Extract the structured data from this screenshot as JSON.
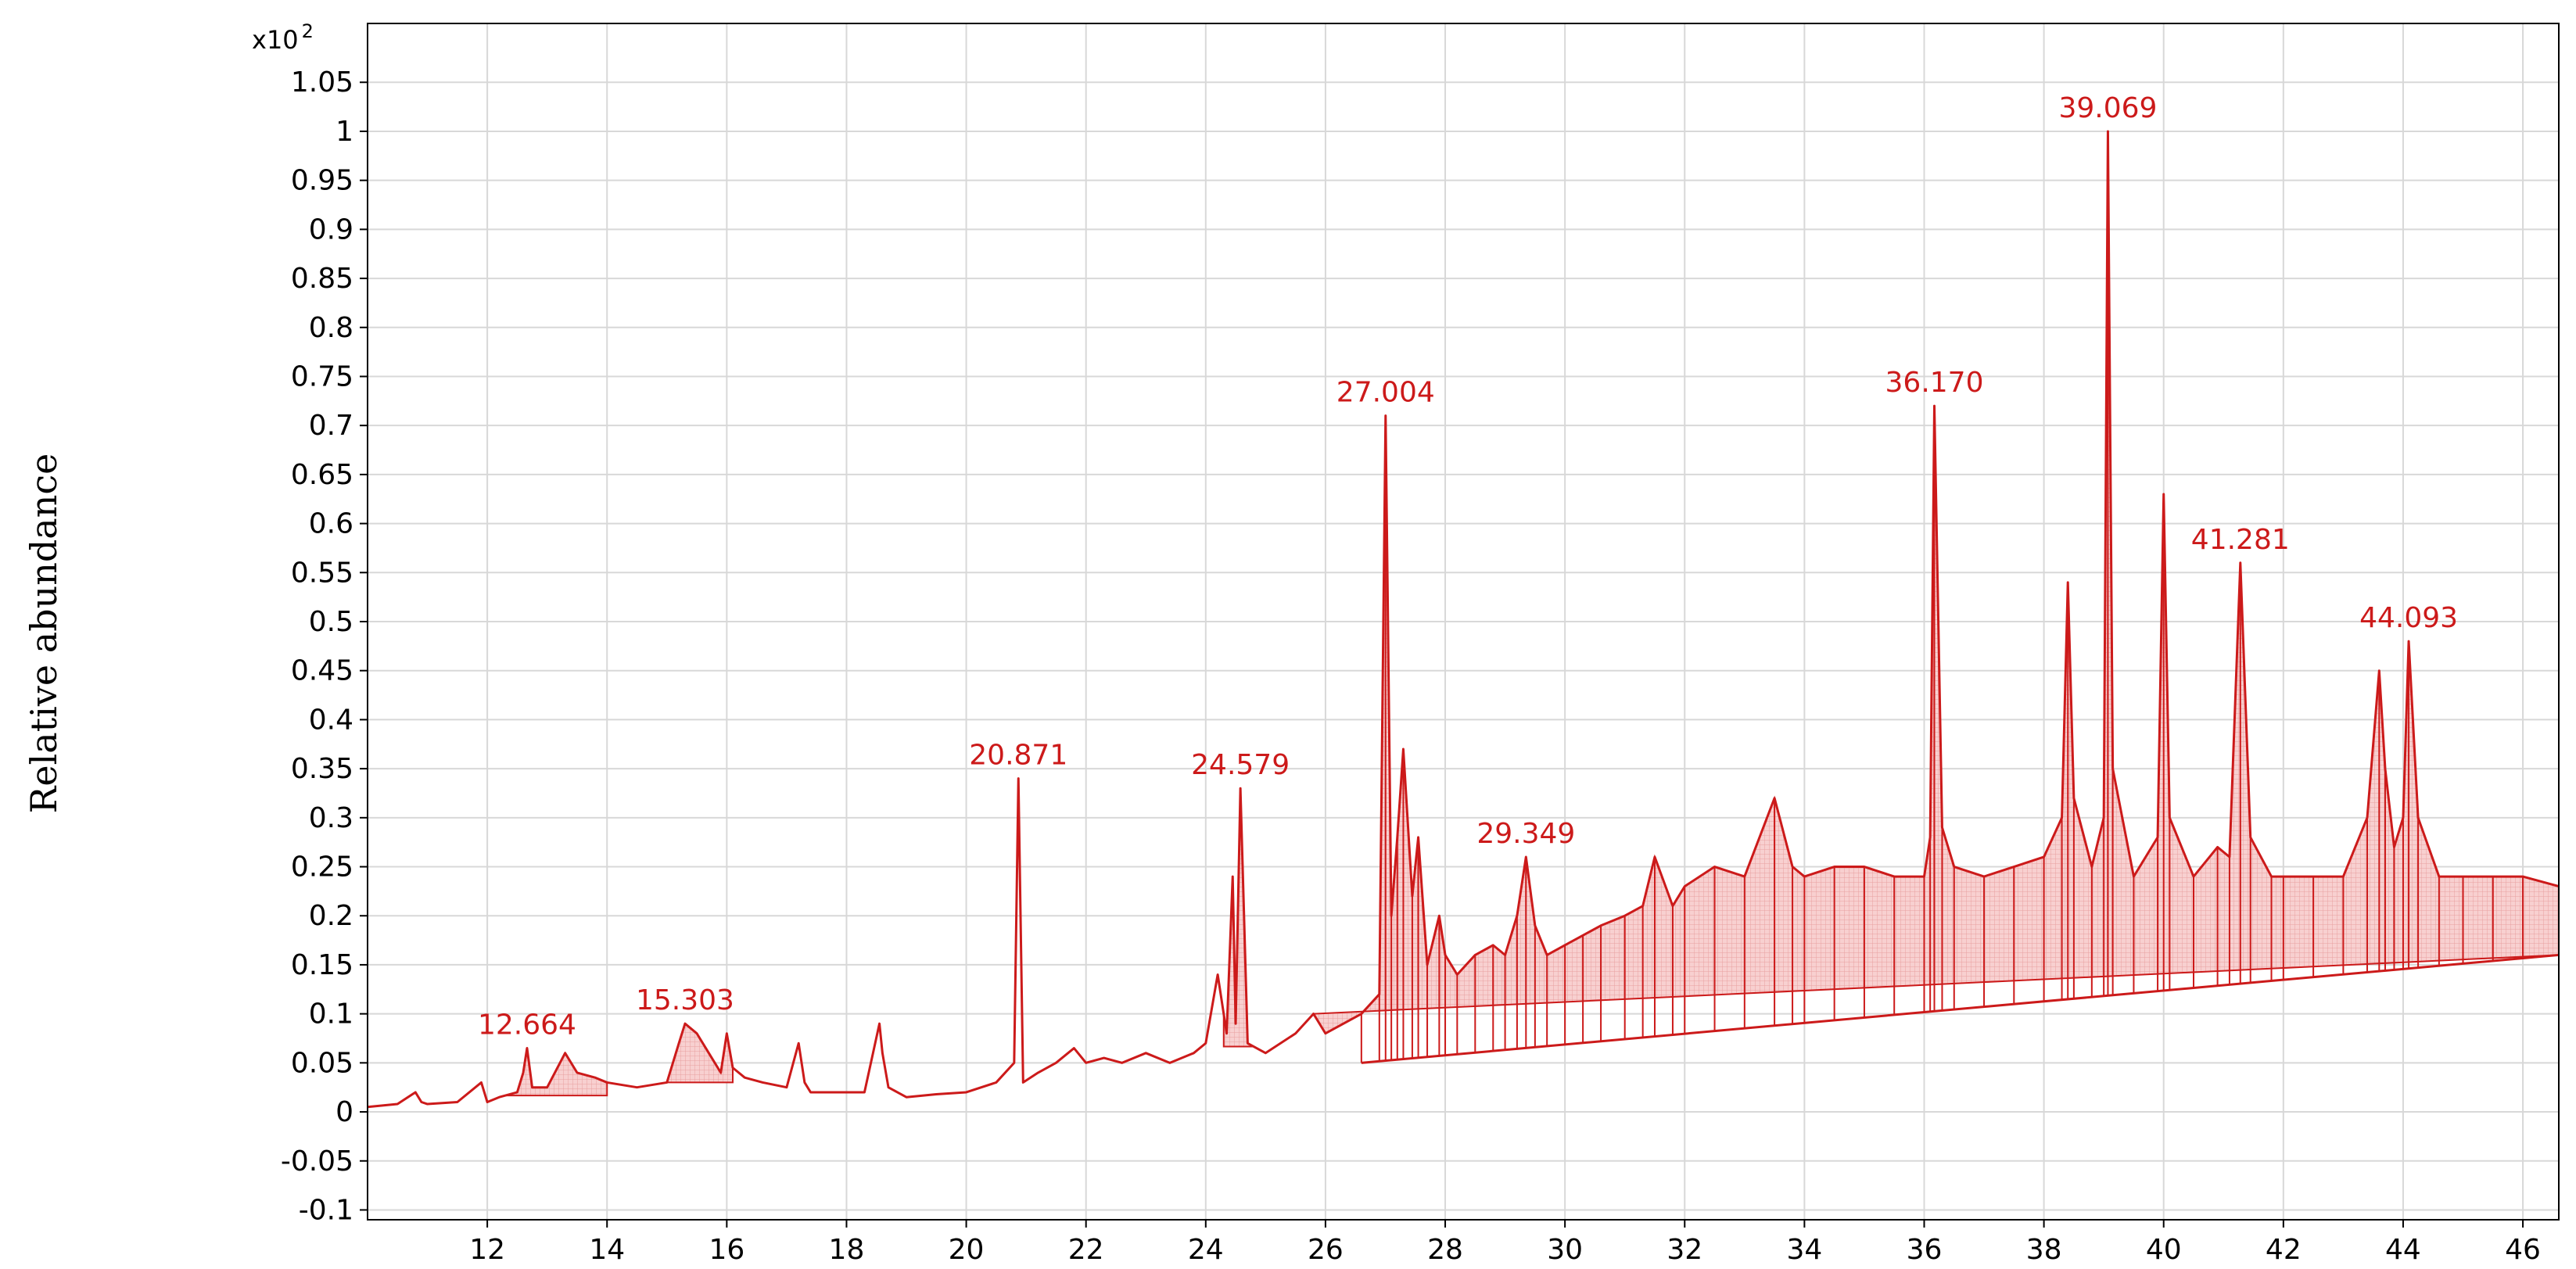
{
  "chart_data": {
    "type": "line",
    "ylabel": "Relative abundance",
    "xlabel": "",
    "y_multiplier": "x10",
    "y_multiplier_exp": "2",
    "xlim": [
      10.0,
      46.6
    ],
    "ylim": [
      -0.11,
      1.11
    ],
    "x_ticks": [
      "12",
      "14",
      "16",
      "18",
      "20",
      "22",
      "24",
      "26",
      "28",
      "30",
      "32",
      "34",
      "36",
      "38",
      "40",
      "42",
      "44",
      "46"
    ],
    "y_ticks": [
      "-0.1",
      "-0.05",
      "0",
      "0.05",
      "0.1",
      "0.15",
      "0.2",
      "0.25",
      "0.3",
      "0.35",
      "0.4",
      "0.45",
      "0.5",
      "0.55",
      "0.6",
      "0.65",
      "0.7",
      "0.75",
      "0.8",
      "0.85",
      "0.9",
      "0.95",
      "1",
      "1.05"
    ],
    "grid": true,
    "series_color": "#cc1a1a",
    "fill_color": "#f6c6c6",
    "series": [
      {
        "x": [
          10.0,
          10.5,
          10.8,
          10.9,
          11.0,
          11.5,
          11.9,
          12.0,
          12.2,
          12.5,
          12.6,
          12.664,
          12.75,
          13.0,
          13.3,
          13.5,
          13.8,
          14.0,
          14.5,
          15.0,
          15.2,
          15.303,
          15.5,
          15.7,
          15.9,
          16.0,
          16.1,
          16.3,
          16.6,
          17.0,
          17.2,
          17.3,
          17.4,
          17.8,
          18.3,
          18.55,
          18.6,
          18.7,
          19.0,
          19.5,
          20.0,
          20.5,
          20.8,
          20.871,
          20.95,
          21.2,
          21.5,
          21.8,
          22.0,
          22.3,
          22.6,
          23.0,
          23.4,
          23.8,
          24.0,
          24.2,
          24.35,
          24.45,
          24.5,
          24.579,
          24.7,
          25.0,
          25.5,
          25.8,
          26.0,
          26.3,
          26.6,
          26.9,
          27.004,
          27.1,
          27.2,
          27.3,
          27.45,
          27.55,
          27.7,
          27.9,
          28.0,
          28.2,
          28.5,
          28.8,
          29.0,
          29.2,
          29.349,
          29.5,
          29.7,
          30.0,
          30.3,
          30.6,
          31.0,
          31.3,
          31.5,
          31.8,
          32.0,
          32.5,
          33.0,
          33.5,
          33.8,
          34.0,
          34.5,
          35.0,
          35.5,
          36.0,
          36.1,
          36.17,
          36.3,
          36.5,
          37.0,
          37.5,
          38.0,
          38.3,
          38.4,
          38.5,
          38.8,
          39.0,
          39.069,
          39.15,
          39.5,
          39.9,
          40.0,
          40.1,
          40.5,
          40.9,
          41.1,
          41.281,
          41.45,
          41.8,
          42.0,
          42.5,
          43.0,
          43.4,
          43.6,
          43.7,
          43.85,
          44.0,
          44.093,
          44.25,
          44.6,
          45.0,
          45.5,
          46.0,
          46.6
        ],
        "y": [
          0.005,
          0.008,
          0.02,
          0.01,
          0.008,
          0.01,
          0.03,
          0.01,
          0.015,
          0.02,
          0.04,
          0.065,
          0.025,
          0.025,
          0.06,
          0.04,
          0.035,
          0.03,
          0.025,
          0.03,
          0.07,
          0.09,
          0.08,
          0.06,
          0.04,
          0.08,
          0.045,
          0.035,
          0.03,
          0.025,
          0.07,
          0.03,
          0.02,
          0.02,
          0.02,
          0.09,
          0.06,
          0.025,
          0.015,
          0.018,
          0.02,
          0.03,
          0.05,
          0.34,
          0.03,
          0.04,
          0.05,
          0.065,
          0.05,
          0.055,
          0.05,
          0.06,
          0.05,
          0.06,
          0.07,
          0.14,
          0.08,
          0.24,
          0.09,
          0.33,
          0.07,
          0.06,
          0.08,
          0.1,
          0.08,
          0.09,
          0.1,
          0.12,
          0.71,
          0.2,
          0.28,
          0.37,
          0.22,
          0.28,
          0.15,
          0.2,
          0.16,
          0.14,
          0.16,
          0.17,
          0.16,
          0.2,
          0.26,
          0.19,
          0.16,
          0.17,
          0.18,
          0.19,
          0.2,
          0.21,
          0.26,
          0.21,
          0.23,
          0.25,
          0.24,
          0.32,
          0.25,
          0.24,
          0.25,
          0.25,
          0.24,
          0.24,
          0.28,
          0.72,
          0.29,
          0.25,
          0.24,
          0.25,
          0.26,
          0.3,
          0.54,
          0.32,
          0.25,
          0.3,
          1.0,
          0.35,
          0.24,
          0.28,
          0.63,
          0.3,
          0.24,
          0.27,
          0.26,
          0.56,
          0.28,
          0.24,
          0.24,
          0.24,
          0.24,
          0.3,
          0.45,
          0.35,
          0.27,
          0.3,
          0.48,
          0.3,
          0.24,
          0.24,
          0.24,
          0.24,
          0.23
        ]
      }
    ],
    "baseline": {
      "x": [
        26.6,
        46.6
      ],
      "y": [
        0.05,
        0.16
      ]
    },
    "peak_labels": [
      {
        "x": 12.664,
        "y": 0.065,
        "text": "12.664"
      },
      {
        "x": 15.303,
        "y": 0.09,
        "text": "15.303"
      },
      {
        "x": 20.871,
        "y": 0.34,
        "text": "20.871"
      },
      {
        "x": 24.579,
        "y": 0.33,
        "text": "24.579"
      },
      {
        "x": 27.004,
        "y": 0.71,
        "text": "27.004"
      },
      {
        "x": 29.349,
        "y": 0.26,
        "text": "29.349"
      },
      {
        "x": 36.17,
        "y": 0.72,
        "text": "36.170"
      },
      {
        "x": 39.069,
        "y": 1.0,
        "text": "39.069"
      },
      {
        "x": 41.281,
        "y": 0.56,
        "text": "41.281"
      },
      {
        "x": 44.093,
        "y": 0.48,
        "text": "44.093"
      }
    ],
    "integrated_regions": [
      [
        12.3,
        14.0
      ],
      [
        15.0,
        16.1
      ],
      [
        24.3,
        24.8
      ],
      [
        25.8,
        46.6
      ]
    ]
  }
}
